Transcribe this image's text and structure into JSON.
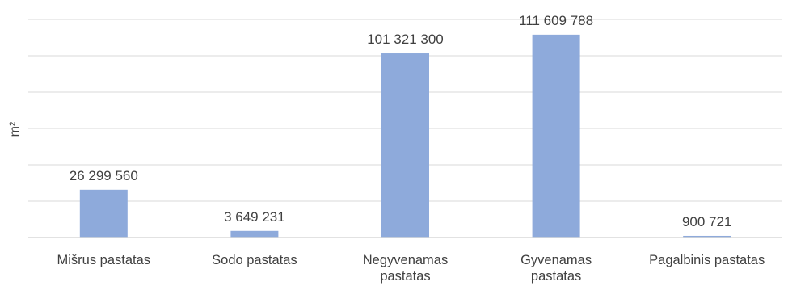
{
  "chart_data": {
    "type": "bar",
    "title": "",
    "xlabel": "",
    "ylabel": "m²",
    "grid": true,
    "legend": "none",
    "ylim": [
      0,
      120000000
    ],
    "categories": [
      [
        "Mišrus pastatas"
      ],
      [
        "Sodo pastatas"
      ],
      [
        "Negyvenamas",
        "pastatas"
      ],
      [
        "Gyvenamas",
        "pastatas"
      ],
      [
        "Pagalbinis pastatas"
      ]
    ],
    "values": [
      26299560,
      3649231,
      101321300,
      111609788,
      900721
    ],
    "data_labels": [
      "26 299 560",
      "3 649 231",
      "101 321 300",
      "111 609 788",
      "900 721"
    ],
    "colors": {
      "bar": "#8eaadb",
      "grid": "#d9d9d9",
      "axis": "#d9d9d9",
      "text": "#404040"
    }
  }
}
